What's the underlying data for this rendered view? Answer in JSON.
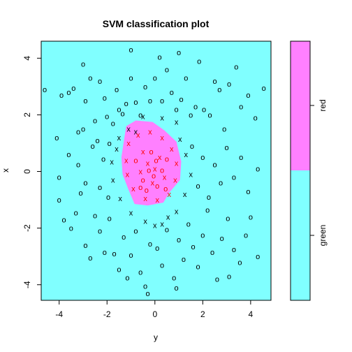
{
  "chart_data": {
    "type": "scatter",
    "title": "SVM classification plot",
    "xlabel": "y",
    "ylabel": "x",
    "xlim": [
      -4.75,
      4.85
    ],
    "ylim": [
      -4.55,
      4.6
    ],
    "x_ticks": [
      -4,
      -2,
      0,
      2,
      4
    ],
    "y_ticks": [
      -4,
      -2,
      0,
      2,
      4
    ],
    "x_tick_labels": [
      "-4",
      "-2",
      "0",
      "2",
      "4"
    ],
    "y_tick_labels": [
      "-4",
      "-2",
      "0",
      "2",
      "4"
    ],
    "grid": false,
    "legend_position": "right",
    "legend_levels": [
      "green",
      "red"
    ],
    "legend_split": 0.5,
    "colors": {
      "green_region": "#80ffff",
      "red_region": "#ff80ff",
      "green_point": "#000000",
      "red_point": "#ff0000",
      "frame": "#000000"
    },
    "red_region_boundary": [
      [
        -1.2,
        1.6
      ],
      [
        -0.8,
        1.8
      ],
      [
        -0.1,
        1.75
      ],
      [
        0.4,
        1.45
      ],
      [
        0.9,
        1.05
      ],
      [
        1.1,
        0.35
      ],
      [
        1.05,
        -0.3
      ],
      [
        0.6,
        -0.75
      ],
      [
        0.35,
        -1.1
      ],
      [
        -0.3,
        -1.2
      ],
      [
        -0.85,
        -1.15
      ],
      [
        -1.1,
        -0.65
      ],
      [
        -1.35,
        -0.1
      ],
      [
        -1.4,
        0.5
      ],
      [
        -1.3,
        1.05
      ]
    ],
    "series": [
      {
        "name": "green",
        "marker": "o",
        "points": [
          [
            -4.6,
            2.9
          ],
          [
            -4.1,
            1.2
          ],
          [
            -3.9,
            2.7
          ],
          [
            -3.6,
            2.8
          ],
          [
            -3.4,
            2.95
          ],
          [
            -3.2,
            1.4
          ],
          [
            -3.0,
            1.5
          ],
          [
            -2.9,
            2.5
          ],
          [
            -2.7,
            3.3
          ],
          [
            -2.5,
            1.8
          ],
          [
            -2.4,
            1.1
          ],
          [
            -2.3,
            3.2
          ],
          [
            -2.1,
            2.6
          ],
          [
            -2.0,
            1.95
          ],
          [
            -1.9,
            1.0
          ],
          [
            -1.75,
            1.7
          ],
          [
            -1.6,
            2.9
          ],
          [
            -1.5,
            2.2
          ],
          [
            -1.35,
            2.05
          ],
          [
            -1.2,
            2.4
          ],
          [
            -1.0,
            3.3
          ],
          [
            -0.8,
            2.45
          ],
          [
            -0.6,
            2.0
          ],
          [
            -0.4,
            3.0
          ],
          [
            -0.2,
            2.5
          ],
          [
            0.0,
            3.3
          ],
          [
            0.3,
            2.5
          ],
          [
            0.5,
            3.6
          ],
          [
            0.7,
            2.8
          ],
          [
            0.9,
            2.2
          ],
          [
            1.1,
            2.55
          ],
          [
            1.3,
            3.3
          ],
          [
            1.5,
            2.0
          ],
          [
            1.7,
            2.3
          ],
          [
            1.85,
            3.9
          ],
          [
            2.05,
            2.2
          ],
          [
            2.3,
            2.0
          ],
          [
            2.5,
            3.2
          ],
          [
            2.7,
            2.9
          ],
          [
            2.9,
            1.5
          ],
          [
            3.1,
            3.1
          ],
          [
            3.4,
            3.7
          ],
          [
            3.6,
            2.3
          ],
          [
            3.9,
            2.7
          ],
          [
            4.2,
            1.9
          ],
          [
            4.55,
            2.95
          ],
          [
            -4.0,
            -1.0
          ],
          [
            -3.8,
            -1.7
          ],
          [
            -3.5,
            -2.0
          ],
          [
            -3.3,
            -1.45
          ],
          [
            -3.1,
            -0.75
          ],
          [
            -2.9,
            -2.6
          ],
          [
            -2.7,
            -3.05
          ],
          [
            -2.5,
            -1.55
          ],
          [
            -2.3,
            -2.1
          ],
          [
            -2.1,
            -2.85
          ],
          [
            -1.9,
            -1.65
          ],
          [
            -1.7,
            -2.9
          ],
          [
            -1.5,
            -3.45
          ],
          [
            -1.3,
            -2.3
          ],
          [
            -1.15,
            -3.75
          ],
          [
            -1.0,
            -2.95
          ],
          [
            -0.8,
            -2.1
          ],
          [
            -0.6,
            -3.55
          ],
          [
            -0.4,
            -4.05
          ],
          [
            -0.2,
            -2.55
          ],
          [
            0.1,
            -2.7
          ],
          [
            0.3,
            -3.3
          ],
          [
            0.5,
            -2.05
          ],
          [
            0.8,
            -3.75
          ],
          [
            1.0,
            -2.4
          ],
          [
            1.2,
            -3.1
          ],
          [
            1.4,
            -1.85
          ],
          [
            1.6,
            -2.65
          ],
          [
            1.8,
            -3.35
          ],
          [
            2.0,
            -2.25
          ],
          [
            2.2,
            -1.35
          ],
          [
            2.4,
            -2.85
          ],
          [
            2.6,
            -3.8
          ],
          [
            2.8,
            -2.35
          ],
          [
            3.05,
            -1.65
          ],
          [
            3.3,
            -2.75
          ],
          [
            3.55,
            -3.2
          ],
          [
            3.8,
            -2.25
          ],
          [
            4.0,
            -1.6
          ],
          [
            4.3,
            -3.0
          ],
          [
            -4.0,
            -0.2
          ],
          [
            -3.6,
            0.6
          ],
          [
            -3.2,
            0.25
          ],
          [
            -2.9,
            -0.4
          ],
          [
            -2.6,
            0.9
          ],
          [
            -2.3,
            -0.55
          ],
          [
            -2.15,
            0.45
          ],
          [
            -1.95,
            -0.9
          ],
          [
            1.55,
            0.9
          ],
          [
            1.8,
            -0.5
          ],
          [
            2.0,
            0.5
          ],
          [
            2.25,
            -0.9
          ],
          [
            2.5,
            0.25
          ],
          [
            2.75,
            -0.4
          ],
          [
            3.0,
            0.85
          ],
          [
            3.3,
            -0.2
          ],
          [
            3.6,
            0.5
          ],
          [
            3.9,
            -0.7
          ],
          [
            4.3,
            0.1
          ],
          [
            -1.0,
            4.3
          ],
          [
            0.2,
            4.05
          ],
          [
            1.0,
            4.2
          ],
          [
            -0.3,
            -4.3
          ],
          [
            0.9,
            -4.1
          ],
          [
            -3.0,
            3.8
          ],
          [
            3.1,
            -3.7
          ]
        ]
      },
      {
        "name": "green",
        "marker": "x",
        "points": [
          [
            -1.5,
            1.2
          ],
          [
            -1.1,
            1.5
          ],
          [
            -0.5,
            1.95
          ],
          [
            0.3,
            1.9
          ],
          [
            0.9,
            1.75
          ],
          [
            1.3,
            0.6
          ],
          [
            1.5,
            -0.1
          ],
          [
            1.25,
            -0.8
          ],
          [
            0.9,
            -1.4
          ],
          [
            0.3,
            -1.85
          ],
          [
            -0.4,
            -1.75
          ],
          [
            -1.0,
            -1.45
          ],
          [
            -1.45,
            -0.95
          ],
          [
            -1.75,
            -0.3
          ],
          [
            -1.8,
            0.35
          ],
          [
            -1.6,
            0.8
          ],
          [
            0.0,
            -1.9
          ],
          [
            0.55,
            -1.6
          ],
          [
            -0.8,
            1.4
          ],
          [
            1.05,
            1.15
          ]
        ]
      },
      {
        "name": "red",
        "marker": "x",
        "points": [
          [
            -1.1,
            1.0
          ],
          [
            -0.7,
            1.3
          ],
          [
            -0.2,
            1.4
          ],
          [
            0.3,
            1.2
          ],
          [
            0.7,
            0.8
          ],
          [
            0.9,
            0.3
          ],
          [
            0.85,
            -0.3
          ],
          [
            0.6,
            -0.8
          ],
          [
            0.1,
            -1.0
          ],
          [
            -0.4,
            -0.95
          ],
          [
            -0.9,
            -0.6
          ],
          [
            -1.15,
            -0.1
          ],
          [
            -1.2,
            0.4
          ],
          [
            -0.5,
            0.7
          ],
          [
            0.2,
            0.5
          ],
          [
            0.4,
            -0.2
          ],
          [
            -0.1,
            -0.4
          ],
          [
            -0.6,
            0.0
          ],
          [
            0.0,
            0.1
          ],
          [
            -0.3,
            0.3
          ]
        ]
      },
      {
        "name": "red",
        "marker": "o",
        "points": [
          [
            -0.8,
            0.4
          ],
          [
            -0.5,
            -0.3
          ],
          [
            -0.25,
            0.05
          ],
          [
            0.05,
            0.4
          ],
          [
            0.3,
            0.05
          ],
          [
            0.1,
            -0.5
          ],
          [
            -0.15,
            0.7
          ],
          [
            0.5,
            0.45
          ],
          [
            -0.6,
            -0.55
          ],
          [
            0.45,
            -0.6
          ],
          [
            -0.35,
            -0.65
          ],
          [
            -0.05,
            -0.15
          ]
        ]
      }
    ]
  }
}
